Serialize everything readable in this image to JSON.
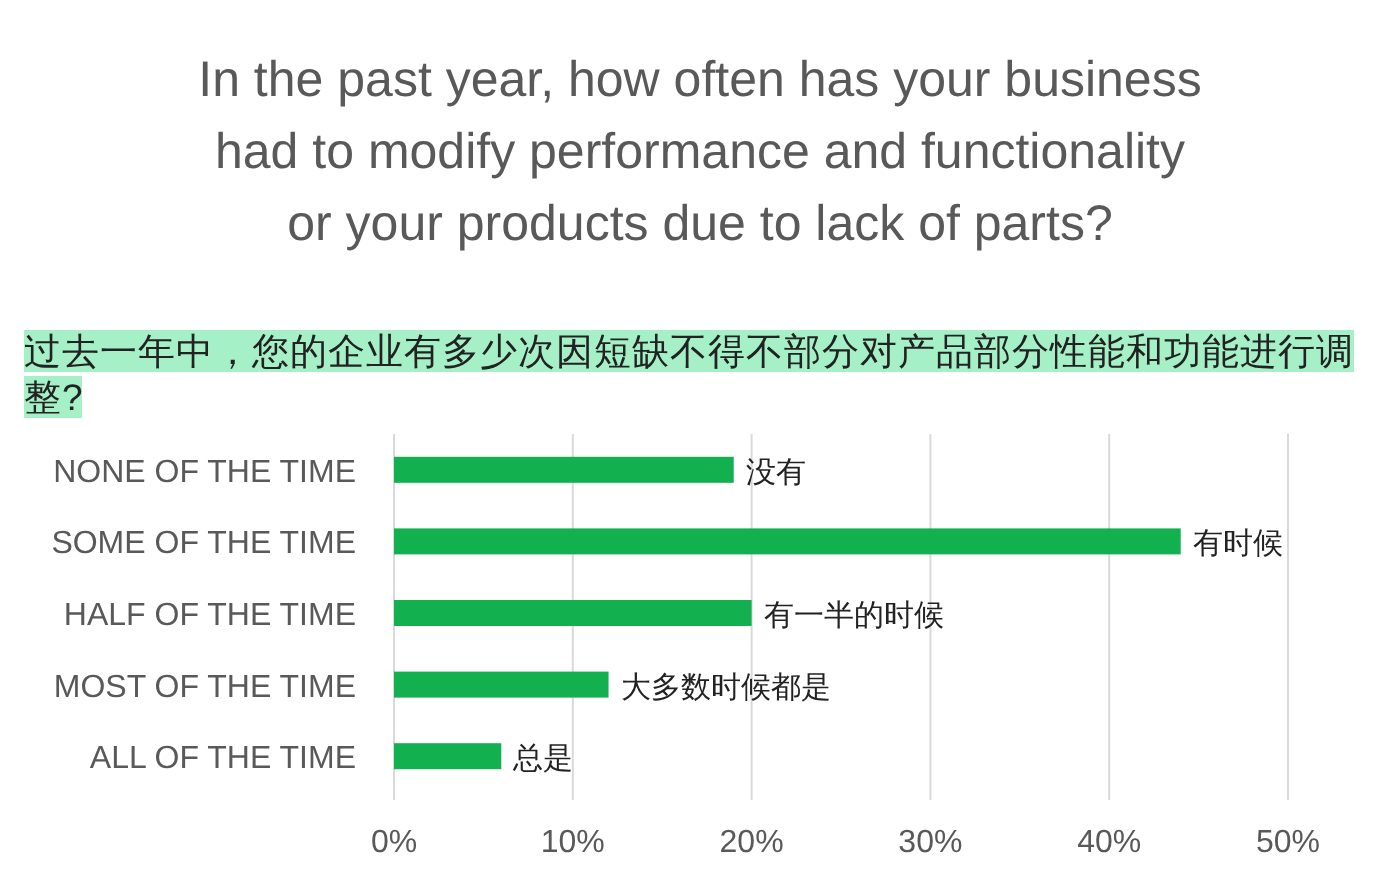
{
  "chart_data": {
    "type": "bar",
    "orientation": "horizontal",
    "title": "In the past year, how often has your business had to modify performance and functionality or your products due to lack of parts?",
    "subtitle": "过去一年中，您的企业有多少次因短缺不得不部分对产品部分性能和功能进行调整?",
    "categories": [
      "NONE OF THE TIME",
      "SOME OF THE TIME",
      "HALF OF THE TIME",
      "MOST OF THE TIME",
      "ALL OF THE TIME"
    ],
    "values": [
      19,
      44,
      20,
      12,
      6
    ],
    "color": "#12b04e",
    "xlim": [
      0,
      50
    ],
    "xticks": [
      {
        "value": 0,
        "label": "0%"
      },
      {
        "value": 10,
        "label": "10%"
      },
      {
        "value": 20,
        "label": "20%"
      },
      {
        "value": 30,
        "label": "30%"
      },
      {
        "value": 40,
        "label": "40%"
      },
      {
        "value": 50,
        "label": "50%"
      }
    ],
    "grid": "x",
    "annotations": [
      {
        "text": "没有",
        "x": 19,
        "y": "NONE OF THE TIME"
      },
      {
        "text": "有时候",
        "x": 44,
        "y": "SOME OF THE TIME"
      },
      {
        "text": "有一半的时候",
        "x": 20,
        "y": "HALF OF THE TIME"
      },
      {
        "text": "大多数时候都是",
        "x": 12,
        "y": "MOST OF THE TIME"
      },
      {
        "text": "总是",
        "x": 6,
        "y": "ALL OF THE TIME"
      }
    ]
  }
}
